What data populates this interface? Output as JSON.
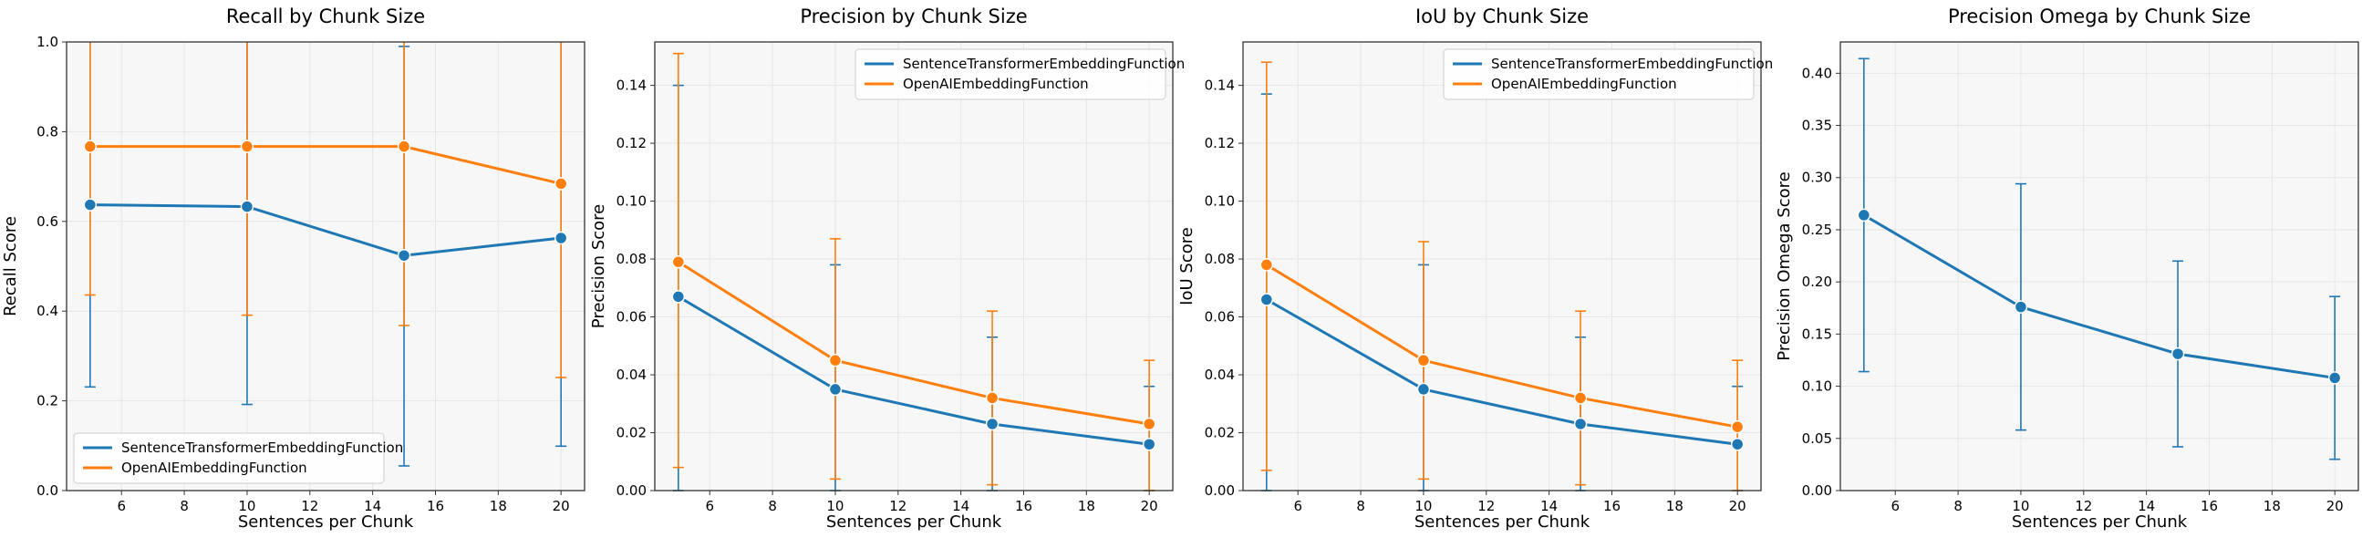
{
  "colors": {
    "series_1": "#1f77b4",
    "series_2": "#ff7f0e",
    "plot_background": "#f7f7f7",
    "grid": "#e6e6e6"
  },
  "chart_data": [
    {
      "type": "line",
      "title": "Recall by Chunk Size",
      "xlabel": "Sentences per Chunk",
      "ylabel": "Recall Score",
      "x": [
        5,
        10,
        15,
        20
      ],
      "xlim": [
        4.25,
        20.75
      ],
      "ylim": [
        0,
        1.0
      ],
      "xticks": [
        6,
        8,
        10,
        12,
        14,
        16,
        18,
        20
      ],
      "yticks": [
        0.0,
        0.2,
        0.4,
        0.6,
        0.8,
        1.0
      ],
      "ytick_decimals": 1,
      "grid": true,
      "error_bars": true,
      "legend": "lower-left",
      "series": [
        {
          "name": "SentenceTransformerEmbeddingFunction",
          "values": [
            0.637,
            0.633,
            0.524,
            0.563
          ],
          "lower": [
            0.231,
            0.192,
            0.055,
            0.099
          ],
          "upper": [
            1.04,
            1.07,
            0.99,
            1.02
          ]
        },
        {
          "name": "OpenAIEmbeddingFunction",
          "values": [
            0.767,
            0.767,
            0.767,
            0.684
          ],
          "lower": [
            0.436,
            0.391,
            0.368,
            0.252
          ],
          "upper": [
            1.1,
            1.15,
            1.17,
            1.11
          ]
        }
      ]
    },
    {
      "type": "line",
      "title": "Precision by Chunk Size",
      "xlabel": "Sentences per Chunk",
      "ylabel": "Precision Score",
      "x": [
        5,
        10,
        15,
        20
      ],
      "xlim": [
        4.25,
        20.75
      ],
      "ylim": [
        0,
        0.155
      ],
      "xticks": [
        6,
        8,
        10,
        12,
        14,
        16,
        18,
        20
      ],
      "yticks": [
        0.0,
        0.02,
        0.04,
        0.06,
        0.08,
        0.1,
        0.12,
        0.14
      ],
      "ytick_decimals": 2,
      "grid": true,
      "error_bars": true,
      "legend": "top-right",
      "series": [
        {
          "name": "SentenceTransformerEmbeddingFunction",
          "values": [
            0.067,
            0.035,
            0.023,
            0.016
          ],
          "lower": [
            0.0,
            0.0,
            0.0,
            0.0
          ],
          "upper": [
            0.14,
            0.078,
            0.053,
            0.036
          ]
        },
        {
          "name": "OpenAIEmbeddingFunction",
          "values": [
            0.079,
            0.045,
            0.032,
            0.023
          ],
          "lower": [
            0.008,
            0.004,
            0.002,
            0.0
          ],
          "upper": [
            0.151,
            0.087,
            0.062,
            0.045
          ]
        }
      ]
    },
    {
      "type": "line",
      "title": "IoU by Chunk Size",
      "xlabel": "Sentences per Chunk",
      "ylabel": "IoU Score",
      "x": [
        5,
        10,
        15,
        20
      ],
      "xlim": [
        4.25,
        20.75
      ],
      "ylim": [
        0,
        0.155
      ],
      "xticks": [
        6,
        8,
        10,
        12,
        14,
        16,
        18,
        20
      ],
      "yticks": [
        0.0,
        0.02,
        0.04,
        0.06,
        0.08,
        0.1,
        0.12,
        0.14
      ],
      "ytick_decimals": 2,
      "grid": true,
      "error_bars": true,
      "legend": "top-right",
      "series": [
        {
          "name": "SentenceTransformerEmbeddingFunction",
          "values": [
            0.066,
            0.035,
            0.023,
            0.016
          ],
          "lower": [
            0.0,
            0.0,
            0.0,
            0.0
          ],
          "upper": [
            0.137,
            0.078,
            0.053,
            0.036
          ]
        },
        {
          "name": "OpenAIEmbeddingFunction",
          "values": [
            0.078,
            0.045,
            0.032,
            0.022
          ],
          "lower": [
            0.007,
            0.004,
            0.002,
            0.0
          ],
          "upper": [
            0.148,
            0.086,
            0.062,
            0.045
          ]
        }
      ]
    },
    {
      "type": "line",
      "title": "Precision Omega by Chunk Size",
      "xlabel": "Sentences per Chunk",
      "ylabel": "Precision Omega Score",
      "x": [
        5,
        10,
        15,
        20
      ],
      "xlim": [
        4.25,
        20.75
      ],
      "ylim": [
        0,
        0.43
      ],
      "xticks": [
        6,
        8,
        10,
        12,
        14,
        16,
        18,
        20
      ],
      "yticks": [
        0.0,
        0.05,
        0.1,
        0.15,
        0.2,
        0.25,
        0.3,
        0.35,
        0.4
      ],
      "ytick_decimals": 2,
      "grid": true,
      "error_bars": true,
      "legend": "none",
      "series": [
        {
          "values": [
            0.264,
            0.176,
            0.131,
            0.108
          ],
          "lower": [
            0.114,
            0.058,
            0.042,
            0.03
          ],
          "upper": [
            0.414,
            0.294,
            0.22,
            0.186
          ]
        }
      ]
    }
  ]
}
